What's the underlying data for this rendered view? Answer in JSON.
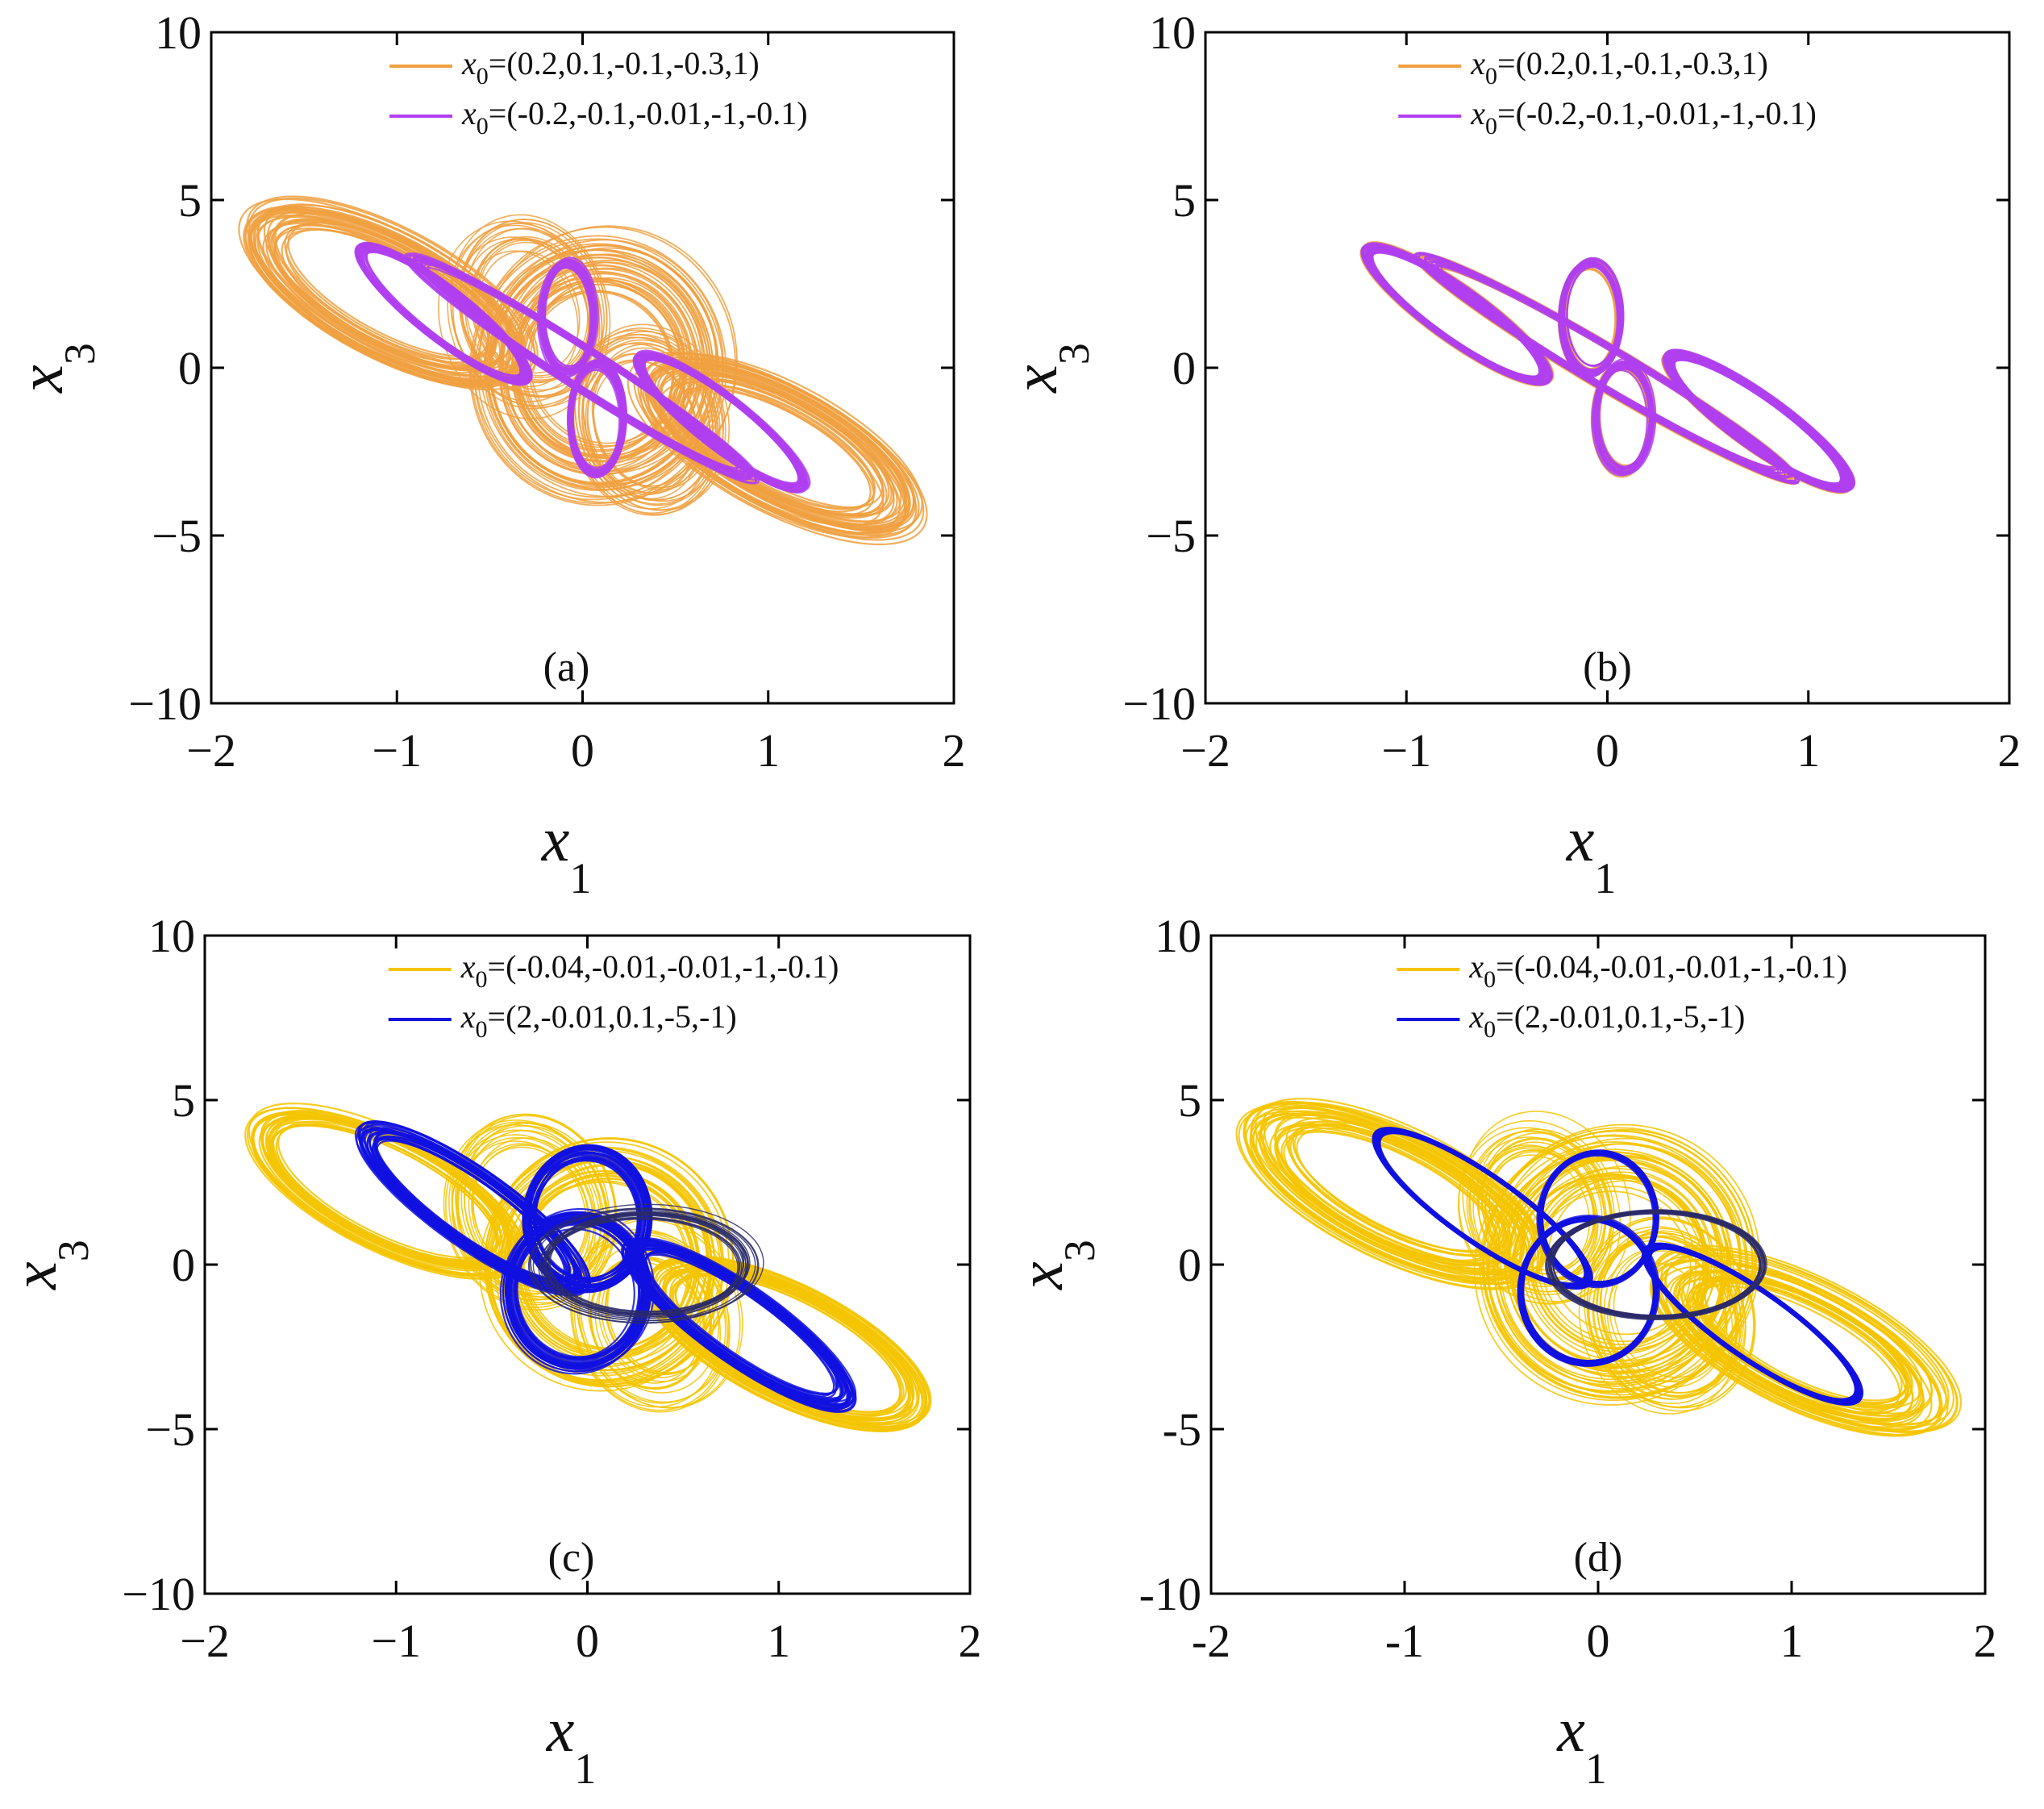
{
  "figure": {
    "description_free": true
  },
  "colors": {
    "orange": "#F0A040",
    "purple": "#B040F0",
    "yellow": "#F5C400",
    "blue": "#1010E0",
    "navy": "#2A2A6A",
    "axis": "#000000"
  },
  "chart_data": [
    {
      "type": "line",
      "panel_label": "(a)",
      "xlabel": "x",
      "xlabel_sub": "1",
      "ylabel": "x",
      "ylabel_sub": "3",
      "xlim": [
        -2,
        2
      ],
      "ylim": [
        -10,
        10
      ],
      "xticks": [
        -2,
        -1,
        0,
        1,
        2
      ],
      "yticks": [
        -10,
        -5,
        0,
        5,
        10
      ],
      "xtick_labels": [
        "−2",
        "−1",
        "0",
        "1",
        "2"
      ],
      "ytick_labels": [
        "−10",
        "−5",
        "0",
        "5",
        "10"
      ],
      "legend_position": "top-right",
      "series": [
        {
          "name": "x0=(0.2,0.1,-0.1,-0.3,1)",
          "legend_x": "x",
          "legend_sub": "0",
          "legend_rest": "=(0.2,0.1,-0.1,-0.3,1)",
          "color": "orange",
          "style": "wide-chaotic"
        },
        {
          "name": "x0=(-0.2,-0.1,-0.01,-1,-0.1)",
          "legend_x": "x",
          "legend_sub": "0",
          "legend_rest": "=(-0.2,-0.1,-0.01,-1,-0.1)",
          "color": "purple",
          "style": "narrow-band"
        }
      ]
    },
    {
      "type": "line",
      "panel_label": "(b)",
      "xlabel": "x",
      "xlabel_sub": "1",
      "ylabel": "x",
      "ylabel_sub": "3",
      "xlim": [
        -2,
        2
      ],
      "ylim": [
        -10,
        10
      ],
      "xticks": [
        -2,
        -1,
        0,
        1,
        2
      ],
      "yticks": [
        -10,
        -5,
        0,
        5,
        10
      ],
      "xtick_labels": [
        "−2",
        "−1",
        "0",
        "1",
        "2"
      ],
      "ytick_labels": [
        "−10",
        "−5",
        "0",
        "5",
        "10"
      ],
      "legend_position": "top-right",
      "series": [
        {
          "name": "x0=(0.2,0.1,-0.1,-0.3,1)",
          "legend_x": "x",
          "legend_sub": "0",
          "legend_rest": "=(0.2,0.1,-0.1,-0.3,1)",
          "color": "orange",
          "style": "narrow-band"
        },
        {
          "name": "x0=(-0.2,-0.1,-0.01,-1,-0.1)",
          "legend_x": "x",
          "legend_sub": "0",
          "legend_rest": "=(-0.2,-0.1,-0.01,-1,-0.1)",
          "color": "purple",
          "style": "narrow-band"
        }
      ]
    },
    {
      "type": "line",
      "panel_label": "(c)",
      "xlabel": "x",
      "xlabel_sub": "1",
      "ylabel": "x",
      "ylabel_sub": "3",
      "xlim": [
        -2,
        2
      ],
      "ylim": [
        -10,
        10
      ],
      "xticks": [
        -2,
        -1,
        0,
        1,
        2
      ],
      "yticks": [
        -10,
        -5,
        0,
        5,
        10
      ],
      "xtick_labels": [
        "−2",
        "−1",
        "0",
        "1",
        "2"
      ],
      "ytick_labels": [
        "−10",
        "−5",
        "0",
        "5",
        "10"
      ],
      "legend_position": "top-right",
      "series": [
        {
          "name": "x0=(-0.04,-0.01,-0.01,-1,-0.1)",
          "legend_x": "x",
          "legend_sub": "0",
          "legend_rest": "=(-0.04,-0.01,-0.01,-1,-0.1)",
          "color": "yellow",
          "style": "wide-band"
        },
        {
          "name": "x0=(2,-0.01,0.1,-5,-1)",
          "legend_x": "x",
          "legend_sub": "0",
          "legend_rest": "=(2,-0.01,0.1,-5,-1)",
          "color": "blue",
          "style": "loops"
        }
      ]
    },
    {
      "type": "line",
      "panel_label": "(d)",
      "xlabel": "x",
      "xlabel_sub": "1",
      "ylabel": "x",
      "ylabel_sub": "3",
      "xlim": [
        -2,
        2
      ],
      "ylim": [
        -10,
        10
      ],
      "xticks": [
        -2,
        -1,
        0,
        1,
        2
      ],
      "yticks": [
        -10,
        -5,
        0,
        5,
        10
      ],
      "xtick_labels": [
        "-2",
        "-1",
        "0",
        "1",
        "2"
      ],
      "ytick_labels": [
        "-10",
        "-5",
        "0",
        "5",
        "10"
      ],
      "legend_position": "top-right",
      "series": [
        {
          "name": "x0=(-0.04,-0.01,-0.01,-1,-0.1)",
          "legend_x": "x",
          "legend_sub": "0",
          "legend_rest": "=(-0.04,-0.01,-0.01,-1,-0.1)",
          "color": "yellow",
          "style": "wide-chaotic"
        },
        {
          "name": "x0=(2,-0.01,0.1,-5,-1)",
          "legend_x": "x",
          "legend_sub": "0",
          "legend_rest": "=(2,-0.01,0.1,-5,-1)",
          "color": "blue",
          "style": "tight-loops"
        }
      ]
    }
  ]
}
